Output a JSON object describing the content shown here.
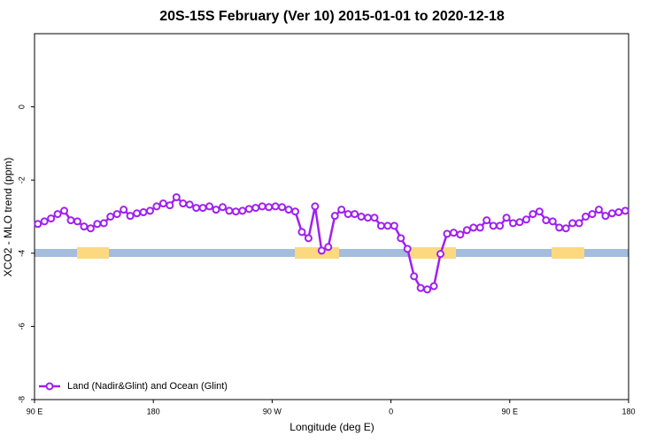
{
  "chart_data": {
    "type": "line",
    "title": "20S-15S February (Ver 10)   2015-01-01 to 2020-12-18",
    "x_label": "Longitude (deg E)",
    "y_label": "XCO2 - MLO trend (ppm)",
    "xlim": [
      90,
      540
    ],
    "xticks": [
      {
        "value": 90,
        "label": "90 E"
      },
      180,
      {
        "value": 270,
        "label": "90 W"
      },
      {
        "value": 360,
        "label": "0"
      },
      {
        "value": 450,
        "label": "90 E"
      },
      {
        "value": 540,
        "label": "180"
      }
    ],
    "ylim": [
      -8,
      2
    ],
    "yticks": [
      -8,
      -6,
      -4,
      -2,
      0
    ],
    "legend": "bottom-left",
    "x": [
      92.5,
      97.5,
      102.5,
      107.5,
      112.5,
      117.5,
      122.5,
      127.5,
      132.5,
      137.5,
      142.5,
      147.5,
      152.5,
      157.5,
      162.5,
      167.5,
      172.5,
      177.5,
      182.5,
      187.5,
      192.5,
      197.5,
      202.5,
      207.5,
      212.5,
      217.5,
      222.5,
      227.5,
      232.5,
      237.5,
      242.5,
      247.5,
      252.5,
      257.5,
      262.5,
      267.5,
      272.5,
      277.5,
      282.5,
      287.5,
      292.5,
      297.5,
      302.5,
      307.5,
      312.5,
      317.5,
      322.5,
      327.5,
      332.5,
      337.5,
      342.5,
      347.5,
      352.5,
      357.5,
      362.5,
      367.5,
      372.5,
      377.5,
      382.5,
      387.5,
      392.5,
      397.5,
      402.5,
      407.5,
      412.5,
      417.5,
      422.5,
      427.5,
      432.5,
      437.5,
      442.5,
      447.5,
      452.5,
      457.5,
      462.5,
      467.5,
      472.5,
      477.5,
      482.5,
      487.5,
      492.5,
      497.5,
      502.5,
      507.5,
      512.5,
      517.5,
      522.5,
      527.5,
      532.5,
      537.5
    ],
    "series": [
      {
        "name": "Land (Nadir&Glint) and Ocean (Glint)",
        "color": "#a020f0",
        "values": [
          -3.2,
          -3.13,
          -3.05,
          -2.93,
          -2.84,
          -3.1,
          -3.13,
          -3.27,
          -3.32,
          -3.2,
          -3.18,
          -3.0,
          -2.93,
          -2.81,
          -2.98,
          -2.91,
          -2.88,
          -2.84,
          -2.72,
          -2.64,
          -2.69,
          -2.47,
          -2.64,
          -2.67,
          -2.76,
          -2.76,
          -2.72,
          -2.81,
          -2.74,
          -2.84,
          -2.86,
          -2.84,
          -2.79,
          -2.76,
          -2.72,
          -2.74,
          -2.72,
          -2.74,
          -2.81,
          -2.86,
          -3.42,
          -3.59,
          -2.72,
          -3.93,
          -3.83,
          -2.98,
          -2.81,
          -2.93,
          -2.93,
          -3.0,
          -3.03,
          -3.03,
          -3.25,
          -3.25,
          -3.25,
          -3.59,
          -3.88,
          -4.63,
          -4.95,
          -4.99,
          -4.9,
          -4.02,
          -3.47,
          -3.44,
          -3.49,
          -3.37,
          -3.3,
          -3.3,
          -3.1,
          -3.25,
          -3.25,
          -3.03,
          -3.18,
          -3.15,
          -3.08,
          -2.93,
          -2.86,
          -3.1,
          -3.13,
          -3.3,
          -3.32,
          -3.18,
          -3.18,
          -3.0,
          -2.93,
          -2.81,
          -2.98,
          -2.91,
          -2.88,
          -2.84
        ]
      }
    ]
  }
}
